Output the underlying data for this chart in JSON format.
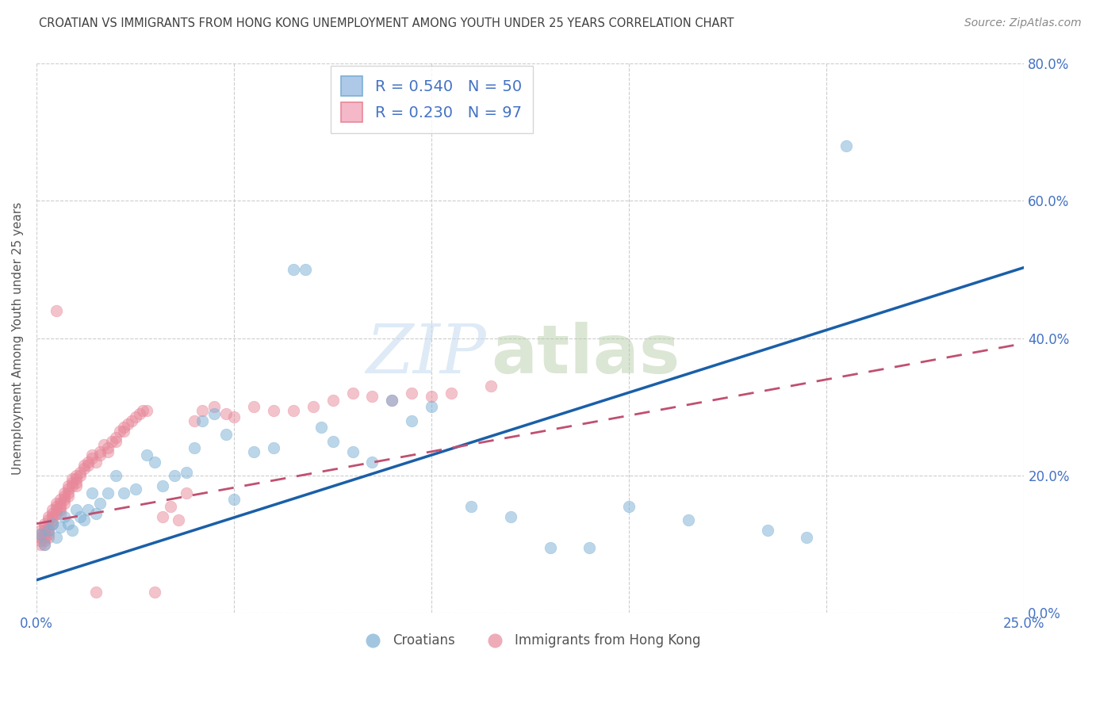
{
  "title": "CROATIAN VS IMMIGRANTS FROM HONG KONG UNEMPLOYMENT AMONG YOUTH UNDER 25 YEARS CORRELATION CHART",
  "source": "Source: ZipAtlas.com",
  "ylabel": "Unemployment Among Youth under 25 years",
  "xlim": [
    0.0,
    0.25
  ],
  "ylim": [
    0.0,
    0.8
  ],
  "xticks": [
    0.0,
    0.05,
    0.1,
    0.15,
    0.2,
    0.25
  ],
  "yticks": [
    0.0,
    0.2,
    0.4,
    0.6,
    0.8
  ],
  "xtick_labels": [
    "0.0%",
    "",
    "",
    "",
    "",
    "25.0%"
  ],
  "ytick_labels_right": [
    "0.0%",
    "20.0%",
    "40.0%",
    "60.0%",
    "80.0%"
  ],
  "watermark_zip": "ZIP",
  "watermark_atlas": "atlas",
  "legend_r_n": [
    {
      "label": "R = 0.540   N = 50",
      "fc": "#aec9e8",
      "ec": "#7bafd4"
    },
    {
      "label": "R = 0.230   N = 97",
      "fc": "#f4b8c8",
      "ec": "#e8889a"
    }
  ],
  "croatians_label": "Croatians",
  "hk_label": "Immigrants from Hong Kong",
  "blue_dot_color": "#7bafd4",
  "pink_dot_color": "#e8889a",
  "blue_line_color": "#1a5fa8",
  "pink_line_color": "#c05070",
  "axis_tick_color": "#4472c4",
  "title_color": "#404040",
  "source_color": "#888888",
  "grid_color": "#c8c8c8",
  "bg_color": "#ffffff",
  "blue_intercept": 0.048,
  "blue_slope": 1.82,
  "pink_intercept": 0.13,
  "pink_slope": 1.05,
  "blue_x": [
    0.001,
    0.002,
    0.003,
    0.004,
    0.005,
    0.006,
    0.007,
    0.008,
    0.009,
    0.01,
    0.011,
    0.012,
    0.013,
    0.014,
    0.015,
    0.016,
    0.018,
    0.02,
    0.022,
    0.025,
    0.028,
    0.03,
    0.032,
    0.035,
    0.038,
    0.04,
    0.042,
    0.045,
    0.048,
    0.05,
    0.055,
    0.06,
    0.065,
    0.068,
    0.072,
    0.075,
    0.08,
    0.085,
    0.09,
    0.095,
    0.1,
    0.11,
    0.12,
    0.13,
    0.14,
    0.15,
    0.165,
    0.185,
    0.195,
    0.205
  ],
  "blue_y": [
    0.115,
    0.1,
    0.12,
    0.13,
    0.11,
    0.125,
    0.14,
    0.13,
    0.12,
    0.15,
    0.14,
    0.135,
    0.15,
    0.175,
    0.145,
    0.16,
    0.175,
    0.2,
    0.175,
    0.18,
    0.23,
    0.22,
    0.185,
    0.2,
    0.205,
    0.24,
    0.28,
    0.29,
    0.26,
    0.165,
    0.235,
    0.24,
    0.5,
    0.5,
    0.27,
    0.25,
    0.235,
    0.22,
    0.31,
    0.28,
    0.3,
    0.155,
    0.14,
    0.095,
    0.095,
    0.155,
    0.135,
    0.12,
    0.11,
    0.68
  ],
  "pink_x": [
    0.001,
    0.001,
    0.001,
    0.001,
    0.001,
    0.002,
    0.002,
    0.002,
    0.002,
    0.002,
    0.002,
    0.002,
    0.003,
    0.003,
    0.003,
    0.003,
    0.003,
    0.003,
    0.004,
    0.004,
    0.004,
    0.004,
    0.004,
    0.005,
    0.005,
    0.005,
    0.005,
    0.005,
    0.006,
    0.006,
    0.006,
    0.006,
    0.006,
    0.007,
    0.007,
    0.007,
    0.007,
    0.008,
    0.008,
    0.008,
    0.008,
    0.009,
    0.009,
    0.009,
    0.01,
    0.01,
    0.01,
    0.01,
    0.011,
    0.011,
    0.012,
    0.012,
    0.013,
    0.013,
    0.014,
    0.014,
    0.015,
    0.015,
    0.016,
    0.016,
    0.017,
    0.018,
    0.018,
    0.019,
    0.02,
    0.02,
    0.021,
    0.022,
    0.022,
    0.023,
    0.024,
    0.025,
    0.026,
    0.027,
    0.028,
    0.03,
    0.032,
    0.034,
    0.036,
    0.038,
    0.04,
    0.042,
    0.045,
    0.048,
    0.05,
    0.055,
    0.06,
    0.065,
    0.07,
    0.075,
    0.08,
    0.085,
    0.09,
    0.095,
    0.1,
    0.105,
    0.115
  ],
  "pink_y": [
    0.115,
    0.12,
    0.11,
    0.105,
    0.1,
    0.13,
    0.125,
    0.12,
    0.115,
    0.11,
    0.105,
    0.1,
    0.14,
    0.135,
    0.125,
    0.12,
    0.115,
    0.11,
    0.15,
    0.145,
    0.14,
    0.135,
    0.13,
    0.16,
    0.155,
    0.15,
    0.145,
    0.44,
    0.165,
    0.16,
    0.155,
    0.15,
    0.145,
    0.175,
    0.17,
    0.165,
    0.16,
    0.185,
    0.18,
    0.175,
    0.17,
    0.195,
    0.19,
    0.185,
    0.2,
    0.195,
    0.19,
    0.185,
    0.205,
    0.2,
    0.215,
    0.21,
    0.22,
    0.215,
    0.23,
    0.225,
    0.03,
    0.22,
    0.235,
    0.23,
    0.245,
    0.24,
    0.235,
    0.25,
    0.255,
    0.25,
    0.265,
    0.27,
    0.265,
    0.275,
    0.28,
    0.285,
    0.29,
    0.295,
    0.295,
    0.03,
    0.14,
    0.155,
    0.135,
    0.175,
    0.28,
    0.295,
    0.3,
    0.29,
    0.285,
    0.3,
    0.295,
    0.295,
    0.3,
    0.31,
    0.32,
    0.315,
    0.31,
    0.32,
    0.315,
    0.32,
    0.33
  ]
}
